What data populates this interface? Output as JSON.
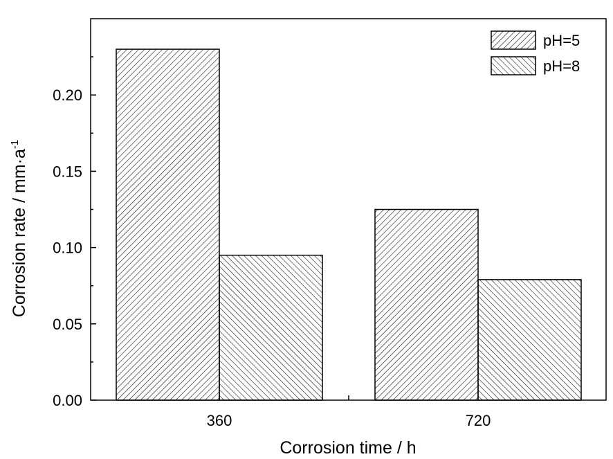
{
  "chart_data": {
    "type": "bar",
    "title": "",
    "xlabel": "Corrosion time / h",
    "ylabel": "Corrosion rate / mm·a",
    "ylabel_superscript": "-1",
    "categories": [
      "360",
      "720"
    ],
    "series": [
      {
        "name": "pH=5",
        "values": [
          0.23,
          0.125
        ],
        "hatch": "forward-diagonal"
      },
      {
        "name": "pH=8",
        "values": [
          0.095,
          0.079
        ],
        "hatch": "backward-diagonal"
      }
    ],
    "ylim": [
      0,
      0.25
    ],
    "yticks": [
      0.0,
      0.05,
      0.1,
      0.15,
      0.2
    ],
    "ytick_labels": [
      "0.00",
      "0.05",
      "0.10",
      "0.15",
      "0.20"
    ],
    "grid": false,
    "legend_position": "top-right",
    "colors": {
      "bar_fill": "#ffffff",
      "hatch": "#000000",
      "axis": "#000000"
    }
  }
}
